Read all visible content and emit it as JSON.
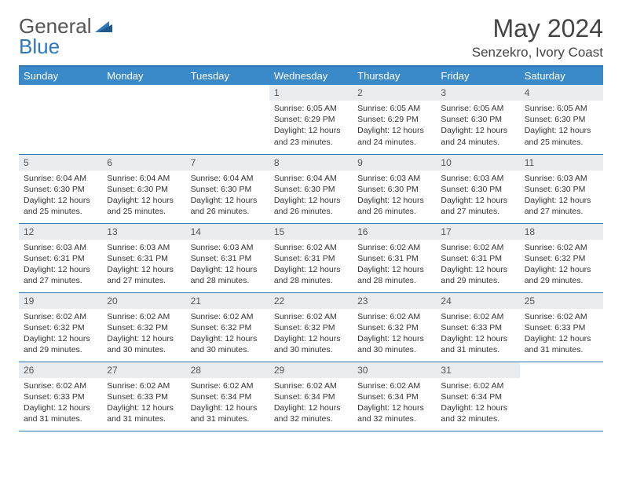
{
  "brand": {
    "part1": "General",
    "part2": "Blue"
  },
  "title": "May 2024",
  "location": "Senzekro, Ivory Coast",
  "colors": {
    "header_bg": "#3a89c9",
    "border": "#2e77b8",
    "daynum_bg": "#e8ecef",
    "text": "#333333"
  },
  "day_headers": [
    "Sunday",
    "Monday",
    "Tuesday",
    "Wednesday",
    "Thursday",
    "Friday",
    "Saturday"
  ],
  "weeks": [
    [
      {
        "n": "",
        "sr": "",
        "ss": "",
        "dl": ""
      },
      {
        "n": "",
        "sr": "",
        "ss": "",
        "dl": ""
      },
      {
        "n": "",
        "sr": "",
        "ss": "",
        "dl": ""
      },
      {
        "n": "1",
        "sr": "Sunrise: 6:05 AM",
        "ss": "Sunset: 6:29 PM",
        "dl": "Daylight: 12 hours and 23 minutes."
      },
      {
        "n": "2",
        "sr": "Sunrise: 6:05 AM",
        "ss": "Sunset: 6:29 PM",
        "dl": "Daylight: 12 hours and 24 minutes."
      },
      {
        "n": "3",
        "sr": "Sunrise: 6:05 AM",
        "ss": "Sunset: 6:30 PM",
        "dl": "Daylight: 12 hours and 24 minutes."
      },
      {
        "n": "4",
        "sr": "Sunrise: 6:05 AM",
        "ss": "Sunset: 6:30 PM",
        "dl": "Daylight: 12 hours and 25 minutes."
      }
    ],
    [
      {
        "n": "5",
        "sr": "Sunrise: 6:04 AM",
        "ss": "Sunset: 6:30 PM",
        "dl": "Daylight: 12 hours and 25 minutes."
      },
      {
        "n": "6",
        "sr": "Sunrise: 6:04 AM",
        "ss": "Sunset: 6:30 PM",
        "dl": "Daylight: 12 hours and 25 minutes."
      },
      {
        "n": "7",
        "sr": "Sunrise: 6:04 AM",
        "ss": "Sunset: 6:30 PM",
        "dl": "Daylight: 12 hours and 26 minutes."
      },
      {
        "n": "8",
        "sr": "Sunrise: 6:04 AM",
        "ss": "Sunset: 6:30 PM",
        "dl": "Daylight: 12 hours and 26 minutes."
      },
      {
        "n": "9",
        "sr": "Sunrise: 6:03 AM",
        "ss": "Sunset: 6:30 PM",
        "dl": "Daylight: 12 hours and 26 minutes."
      },
      {
        "n": "10",
        "sr": "Sunrise: 6:03 AM",
        "ss": "Sunset: 6:30 PM",
        "dl": "Daylight: 12 hours and 27 minutes."
      },
      {
        "n": "11",
        "sr": "Sunrise: 6:03 AM",
        "ss": "Sunset: 6:30 PM",
        "dl": "Daylight: 12 hours and 27 minutes."
      }
    ],
    [
      {
        "n": "12",
        "sr": "Sunrise: 6:03 AM",
        "ss": "Sunset: 6:31 PM",
        "dl": "Daylight: 12 hours and 27 minutes."
      },
      {
        "n": "13",
        "sr": "Sunrise: 6:03 AM",
        "ss": "Sunset: 6:31 PM",
        "dl": "Daylight: 12 hours and 27 minutes."
      },
      {
        "n": "14",
        "sr": "Sunrise: 6:03 AM",
        "ss": "Sunset: 6:31 PM",
        "dl": "Daylight: 12 hours and 28 minutes."
      },
      {
        "n": "15",
        "sr": "Sunrise: 6:02 AM",
        "ss": "Sunset: 6:31 PM",
        "dl": "Daylight: 12 hours and 28 minutes."
      },
      {
        "n": "16",
        "sr": "Sunrise: 6:02 AM",
        "ss": "Sunset: 6:31 PM",
        "dl": "Daylight: 12 hours and 28 minutes."
      },
      {
        "n": "17",
        "sr": "Sunrise: 6:02 AM",
        "ss": "Sunset: 6:31 PM",
        "dl": "Daylight: 12 hours and 29 minutes."
      },
      {
        "n": "18",
        "sr": "Sunrise: 6:02 AM",
        "ss": "Sunset: 6:32 PM",
        "dl": "Daylight: 12 hours and 29 minutes."
      }
    ],
    [
      {
        "n": "19",
        "sr": "Sunrise: 6:02 AM",
        "ss": "Sunset: 6:32 PM",
        "dl": "Daylight: 12 hours and 29 minutes."
      },
      {
        "n": "20",
        "sr": "Sunrise: 6:02 AM",
        "ss": "Sunset: 6:32 PM",
        "dl": "Daylight: 12 hours and 30 minutes."
      },
      {
        "n": "21",
        "sr": "Sunrise: 6:02 AM",
        "ss": "Sunset: 6:32 PM",
        "dl": "Daylight: 12 hours and 30 minutes."
      },
      {
        "n": "22",
        "sr": "Sunrise: 6:02 AM",
        "ss": "Sunset: 6:32 PM",
        "dl": "Daylight: 12 hours and 30 minutes."
      },
      {
        "n": "23",
        "sr": "Sunrise: 6:02 AM",
        "ss": "Sunset: 6:32 PM",
        "dl": "Daylight: 12 hours and 30 minutes."
      },
      {
        "n": "24",
        "sr": "Sunrise: 6:02 AM",
        "ss": "Sunset: 6:33 PM",
        "dl": "Daylight: 12 hours and 31 minutes."
      },
      {
        "n": "25",
        "sr": "Sunrise: 6:02 AM",
        "ss": "Sunset: 6:33 PM",
        "dl": "Daylight: 12 hours and 31 minutes."
      }
    ],
    [
      {
        "n": "26",
        "sr": "Sunrise: 6:02 AM",
        "ss": "Sunset: 6:33 PM",
        "dl": "Daylight: 12 hours and 31 minutes."
      },
      {
        "n": "27",
        "sr": "Sunrise: 6:02 AM",
        "ss": "Sunset: 6:33 PM",
        "dl": "Daylight: 12 hours and 31 minutes."
      },
      {
        "n": "28",
        "sr": "Sunrise: 6:02 AM",
        "ss": "Sunset: 6:34 PM",
        "dl": "Daylight: 12 hours and 31 minutes."
      },
      {
        "n": "29",
        "sr": "Sunrise: 6:02 AM",
        "ss": "Sunset: 6:34 PM",
        "dl": "Daylight: 12 hours and 32 minutes."
      },
      {
        "n": "30",
        "sr": "Sunrise: 6:02 AM",
        "ss": "Sunset: 6:34 PM",
        "dl": "Daylight: 12 hours and 32 minutes."
      },
      {
        "n": "31",
        "sr": "Sunrise: 6:02 AM",
        "ss": "Sunset: 6:34 PM",
        "dl": "Daylight: 12 hours and 32 minutes."
      },
      {
        "n": "",
        "sr": "",
        "ss": "",
        "dl": ""
      }
    ]
  ]
}
